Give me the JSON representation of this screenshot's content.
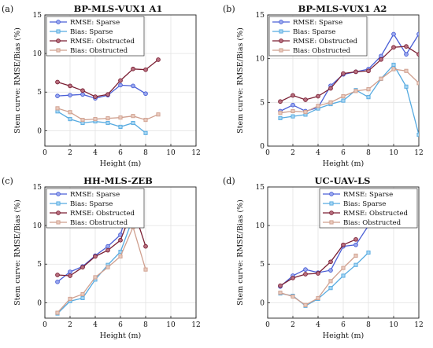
{
  "figure": {
    "background": "#ffffff",
    "series_style": [
      {
        "color": "#4a5fd6",
        "marker_fill": "#9aa8ee"
      },
      {
        "color": "#56aae0",
        "marker_fill": "#a5d5f3"
      },
      {
        "color": "#7a1f33",
        "marker_fill": "#b87080"
      },
      {
        "color": "#cf9f8e",
        "marker_fill": "#e9cabd"
      }
    ]
  },
  "chart_data": [
    {
      "letter": "(a)",
      "type": "line",
      "title": "BP-MLS-VUX1 A1",
      "xlabel": "Height (m)",
      "ylabel": "Stem curve: RMSE/Bias (%)",
      "xlim": [
        0,
        12
      ],
      "ylim": [
        -2,
        15
      ],
      "xticks": [
        0,
        2,
        4,
        6,
        8,
        10,
        12
      ],
      "yticks": [
        0,
        5,
        10,
        15
      ],
      "grid": true,
      "legend_position": "top-left",
      "series": [
        {
          "name": "RMSE: Sparse",
          "x": [
            1,
            2,
            3,
            4,
            5,
            6,
            7,
            8
          ],
          "values": [
            4.5,
            4.6,
            4.7,
            4.2,
            4.6,
            5.9,
            5.8,
            4.8
          ]
        },
        {
          "name": "Bias: Sparse",
          "x": [
            1,
            2,
            3,
            4,
            5,
            6,
            7,
            8
          ],
          "values": [
            2.5,
            1.5,
            1.0,
            1.2,
            1.0,
            0.5,
            1.0,
            -0.3
          ]
        },
        {
          "name": "RMSE: Obstructed",
          "x": [
            1,
            2,
            3,
            4,
            5,
            6,
            7,
            8,
            9
          ],
          "values": [
            6.3,
            5.8,
            5.2,
            4.4,
            4.7,
            6.5,
            8.0,
            7.9,
            9.2
          ]
        },
        {
          "name": "Bias: Obstructed",
          "x": [
            1,
            2,
            3,
            4,
            5,
            6,
            7,
            8,
            9
          ],
          "values": [
            2.9,
            2.4,
            1.4,
            1.5,
            1.6,
            1.7,
            1.9,
            1.4,
            2.1
          ]
        }
      ]
    },
    {
      "letter": "(b)",
      "type": "line",
      "title": "BP-MLS-VUX1 A2",
      "xlabel": "Height (m)",
      "ylabel": "Stem curve: RMSE/Bias (%)",
      "xlim": [
        0,
        12
      ],
      "ylim": [
        0,
        15
      ],
      "xticks": [
        0,
        2,
        4,
        6,
        8,
        10,
        12
      ],
      "yticks": [
        0,
        5,
        10,
        15
      ],
      "grid": true,
      "legend_position": "top-left",
      "series": [
        {
          "name": "RMSE: Sparse",
          "x": [
            1,
            2,
            3,
            4,
            5,
            6,
            7,
            8,
            9,
            10,
            11,
            12
          ],
          "values": [
            4.0,
            4.7,
            4.0,
            4.4,
            6.9,
            8.2,
            8.5,
            8.8,
            10.3,
            12.8,
            10.5,
            12.8
          ]
        },
        {
          "name": "Bias: Sparse",
          "x": [
            1,
            2,
            3,
            4,
            5,
            6,
            7,
            8,
            9,
            10,
            11,
            12
          ],
          "values": [
            3.2,
            3.4,
            3.6,
            4.3,
            4.8,
            5.2,
            6.4,
            5.6,
            7.7,
            9.3,
            6.8,
            1.3
          ]
        },
        {
          "name": "RMSE: Obstructed",
          "x": [
            1,
            2,
            3,
            4,
            5,
            6,
            7,
            8,
            9,
            10,
            11,
            12
          ],
          "values": [
            5.1,
            5.8,
            5.3,
            5.7,
            6.6,
            8.3,
            8.5,
            8.6,
            9.9,
            11.3,
            11.4,
            10.5
          ]
        },
        {
          "name": "Bias: Obstructed",
          "x": [
            1,
            2,
            3,
            4,
            5,
            6,
            7,
            8,
            9,
            10,
            11,
            12
          ],
          "values": [
            3.8,
            4.0,
            3.9,
            4.6,
            5.0,
            5.7,
            6.3,
            6.5,
            7.7,
            8.8,
            8.6,
            7.2
          ]
        }
      ]
    },
    {
      "letter": "(c)",
      "type": "line",
      "title": "HH-MLS-ZEB",
      "xlabel": "Height (m)",
      "ylabel": "Stem curve: RMSE/Bias (%)",
      "xlim": [
        0,
        12
      ],
      "ylim": [
        -2,
        15
      ],
      "xticks": [
        0,
        2,
        4,
        6,
        8,
        10,
        12
      ],
      "yticks": [
        0,
        5,
        10,
        15
      ],
      "grid": true,
      "legend_position": "top-left",
      "series": [
        {
          "name": "RMSE: Sparse",
          "x": [
            1,
            2,
            3,
            4,
            5,
            6,
            7
          ],
          "values": [
            2.7,
            4.0,
            4.7,
            6.1,
            7.3,
            8.8,
            14.4
          ]
        },
        {
          "name": "Bias: Sparse",
          "x": [
            1,
            2,
            3,
            4,
            5,
            6,
            7
          ],
          "values": [
            -1.4,
            0.2,
            0.6,
            3.0,
            4.9,
            6.6,
            11.0
          ]
        },
        {
          "name": "RMSE: Obstructed",
          "x": [
            1,
            2,
            3,
            4,
            5,
            6,
            7,
            8
          ],
          "values": [
            3.6,
            3.5,
            4.6,
            6.0,
            6.8,
            8.1,
            12.3,
            7.3
          ]
        },
        {
          "name": "Bias: Obstructed",
          "x": [
            1,
            2,
            3,
            4,
            5,
            6,
            7,
            8
          ],
          "values": [
            -1.3,
            0.5,
            1.1,
            3.3,
            4.6,
            6.0,
            9.8,
            4.3
          ]
        }
      ]
    },
    {
      "letter": "(d)",
      "type": "line",
      "title": "UC-UAV-LS",
      "xlabel": "Height (m)",
      "ylabel": "Stem curve: RMSE/Bias (%)",
      "xlim": [
        0,
        12
      ],
      "ylim": [
        -2,
        15
      ],
      "xticks": [
        0,
        2,
        4,
        6,
        8,
        10,
        12
      ],
      "yticks": [
        0,
        5,
        10,
        15
      ],
      "grid": true,
      "legend_position": "top-right",
      "series": [
        {
          "name": "RMSE: Sparse",
          "x": [
            1,
            2,
            3,
            4,
            5,
            6,
            7,
            8
          ],
          "values": [
            2.1,
            3.5,
            4.3,
            3.9,
            4.2,
            7.3,
            7.5,
            10.0
          ]
        },
        {
          "name": "Bias: Sparse",
          "x": [
            1,
            2,
            3,
            4,
            5,
            6,
            7,
            8
          ],
          "values": [
            1.2,
            0.9,
            -0.4,
            0.5,
            1.9,
            3.5,
            4.9,
            6.5
          ]
        },
        {
          "name": "RMSE: Obstructed",
          "x": [
            1,
            2,
            3,
            4,
            5,
            6,
            7
          ],
          "values": [
            2.2,
            3.2,
            3.7,
            3.8,
            5.3,
            7.5,
            8.2
          ]
        },
        {
          "name": "Bias: Obstructed",
          "x": [
            1,
            2,
            3,
            4,
            5,
            6,
            7
          ],
          "values": [
            1.3,
            0.8,
            -0.3,
            0.6,
            2.8,
            4.5,
            6.1
          ]
        }
      ]
    }
  ]
}
